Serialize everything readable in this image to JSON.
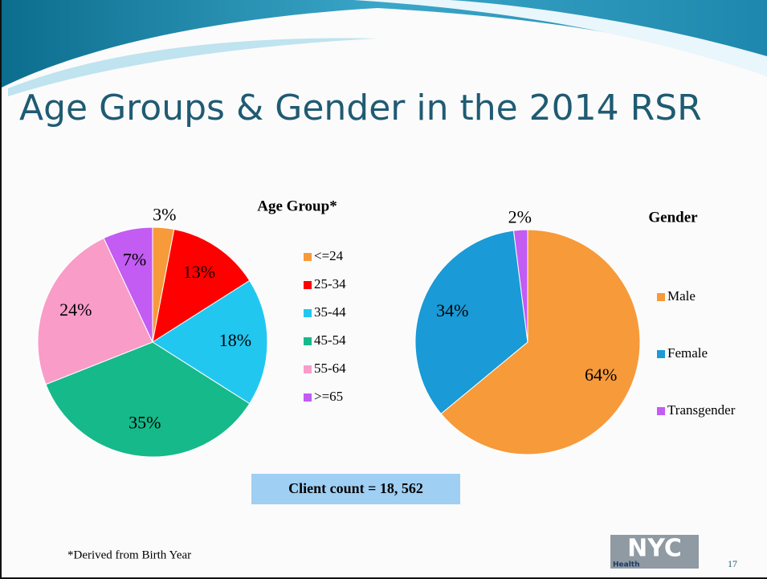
{
  "title": "Age Groups & Gender in the 2014 RSR",
  "chart_data": [
    {
      "type": "pie",
      "title": "Age Group*",
      "categories": [
        "<=24",
        "25-34",
        "35-44",
        "45-54",
        "55-64",
        ">=65"
      ],
      "values": [
        3,
        13,
        18,
        35,
        24,
        7
      ],
      "value_labels": [
        "3%",
        "13%",
        "18%",
        "35%",
        "24%",
        "7%"
      ],
      "colors": [
        "#f79a3a",
        "#ff0000",
        "#22c7f0",
        "#16b98a",
        "#f99cc8",
        "#c25cf2"
      ]
    },
    {
      "type": "pie",
      "title": "Gender",
      "categories": [
        "Male",
        "Female",
        "Transgender"
      ],
      "values": [
        64,
        34,
        2
      ],
      "value_labels": [
        "64%",
        "34%",
        "2%"
      ],
      "colors": [
        "#f79a3a",
        "#1a9ad6",
        "#c25cf2"
      ]
    }
  ],
  "client_count": "Client count = 18, 562",
  "footnote": "*Derived from Birth Year",
  "page_number": "17",
  "logo": {
    "text": "NYC",
    "subtext": "Health"
  }
}
